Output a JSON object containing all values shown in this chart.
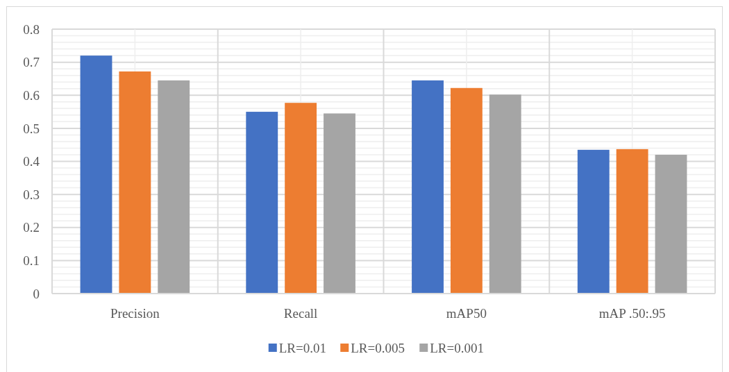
{
  "chart_data": {
    "type": "bar",
    "categories": [
      "Precision",
      "Recall",
      "mAP50",
      "mAP .50:.95"
    ],
    "series": [
      {
        "name": "LR=0.01",
        "color": "#4472c4",
        "values": [
          0.72,
          0.55,
          0.645,
          0.435
        ]
      },
      {
        "name": "LR=0.005",
        "color": "#ed7d31",
        "values": [
          0.672,
          0.577,
          0.622,
          0.437
        ]
      },
      {
        "name": "LR=0.001",
        "color": "#a5a5a5",
        "values": [
          0.645,
          0.545,
          0.602,
          0.42
        ]
      }
    ],
    "ylim": [
      0,
      0.8
    ],
    "yticks": [
      0,
      {
        "value": 0.02,
        "label": null
      },
      {
        "value": 0.04,
        "label": null
      },
      {
        "value": 0.06,
        "label": null
      },
      {
        "value": 0.08,
        "label": null
      },
      0.1,
      {
        "value": 0.12,
        "label": null
      },
      {
        "value": 0.14,
        "label": null
      },
      {
        "value": 0.16,
        "label": null
      },
      {
        "value": 0.18,
        "label": null
      },
      0.2,
      {
        "value": 0.22,
        "label": null
      },
      {
        "value": 0.24,
        "label": null
      },
      {
        "value": 0.26,
        "label": null
      },
      {
        "value": 0.28,
        "label": null
      },
      0.3,
      {
        "value": 0.32,
        "label": null
      },
      {
        "value": 0.34,
        "label": null
      },
      {
        "value": 0.36,
        "label": null
      },
      {
        "value": 0.38,
        "label": null
      },
      0.4,
      {
        "value": 0.42,
        "label": null
      },
      {
        "value": 0.44,
        "label": null
      },
      {
        "value": 0.46,
        "label": null
      },
      {
        "value": 0.48,
        "label": null
      },
      0.5,
      {
        "value": 0.52,
        "label": null
      },
      {
        "value": 0.54,
        "label": null
      },
      {
        "value": 0.56,
        "label": null
      },
      {
        "value": 0.58,
        "label": null
      },
      0.6,
      {
        "value": 0.62,
        "label": null
      },
      {
        "value": 0.64,
        "label": null
      },
      {
        "value": 0.66,
        "label": null
      },
      {
        "value": 0.68,
        "label": null
      },
      0.7,
      {
        "value": 0.72,
        "label": null
      },
      {
        "value": 0.74,
        "label": null
      },
      {
        "value": 0.76,
        "label": null
      },
      {
        "value": 0.78,
        "label": null
      },
      0.8
    ],
    "grid": true,
    "legend": "bottom"
  }
}
